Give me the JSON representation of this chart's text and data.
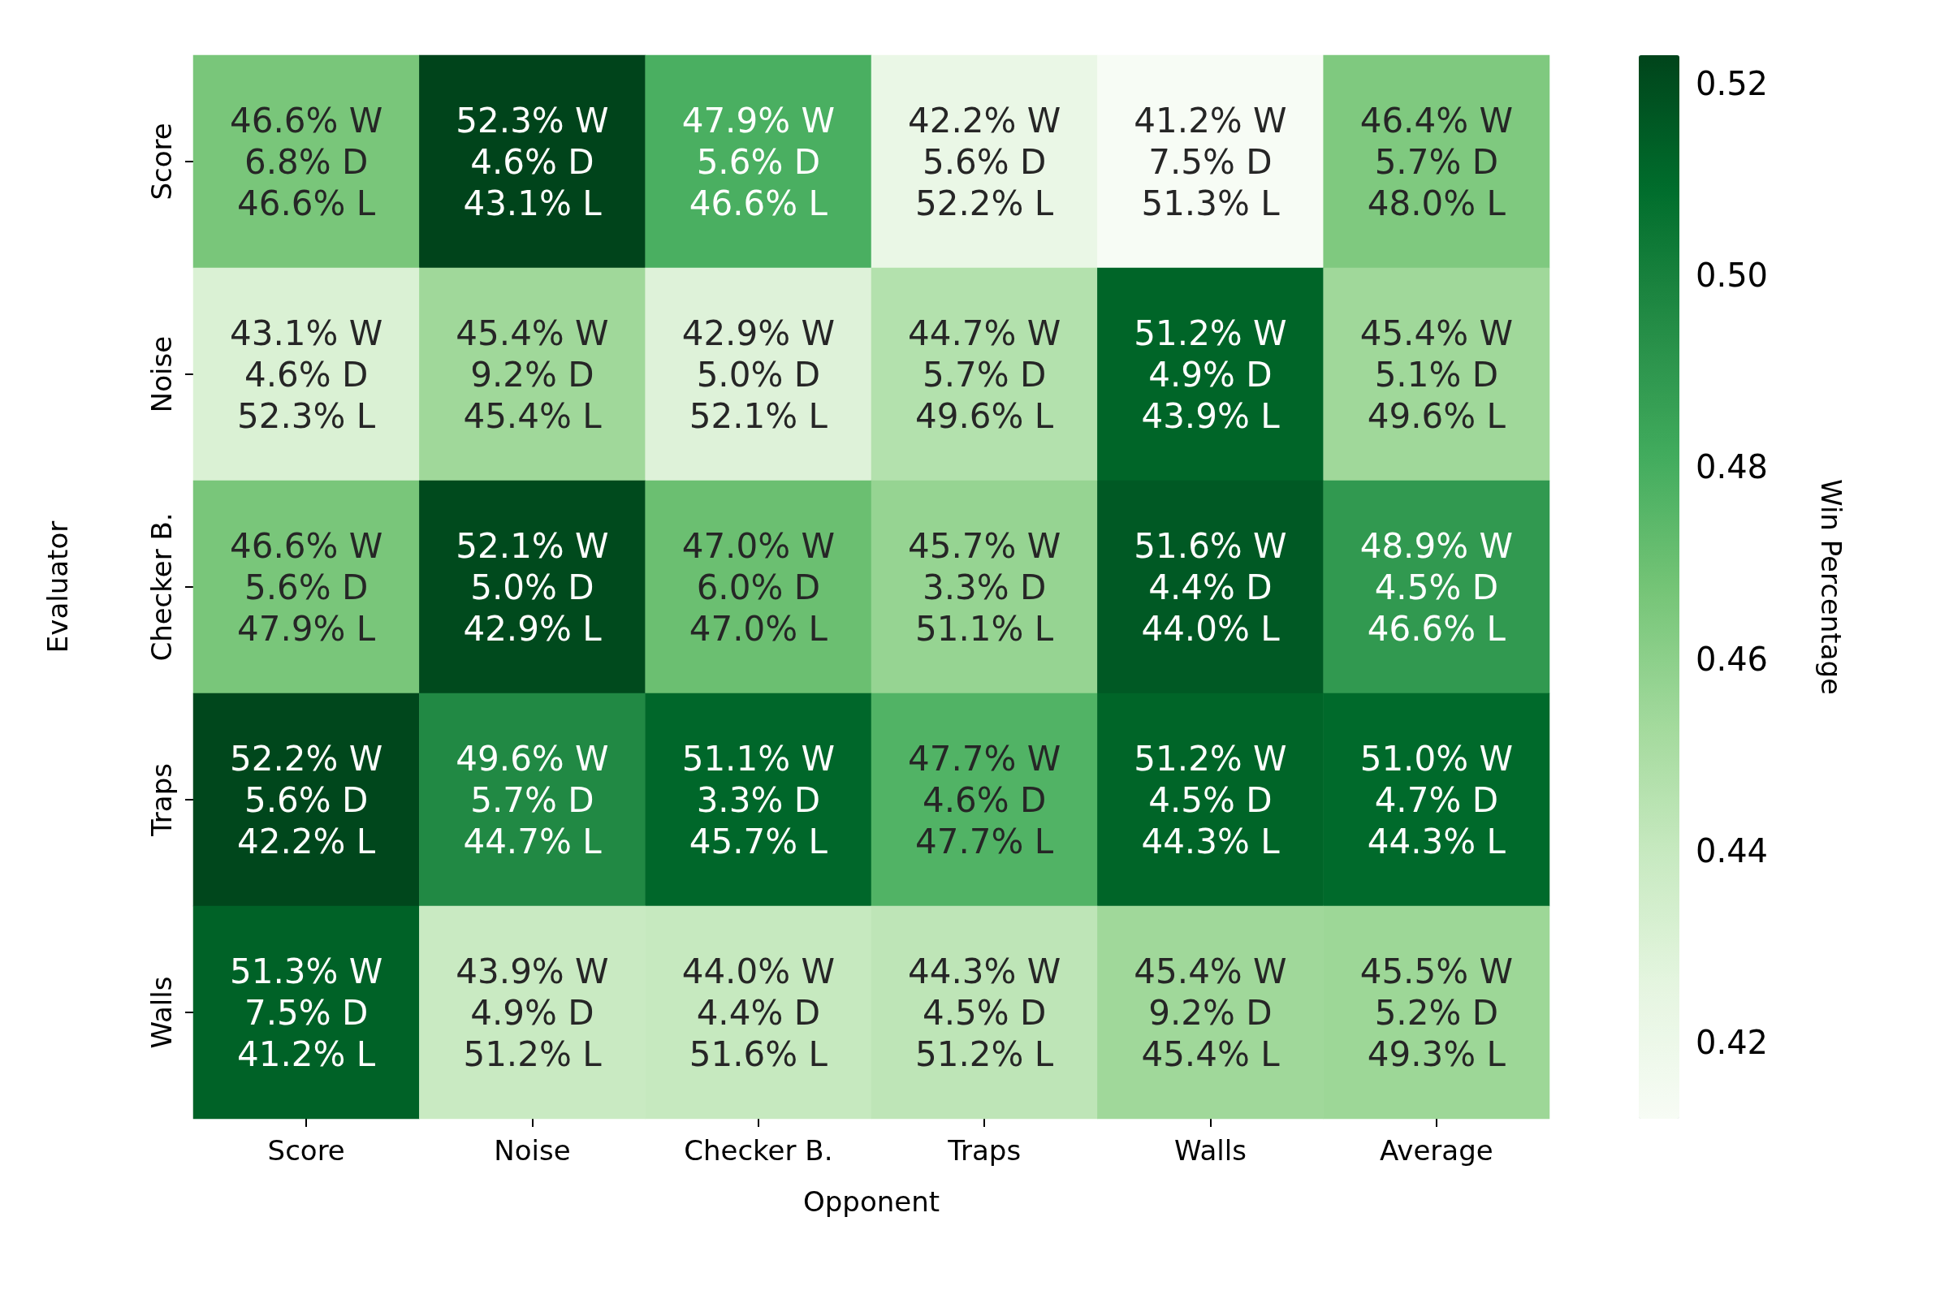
{
  "chart_data": {
    "type": "heatmap",
    "xlabel": "Opponent",
    "ylabel": "Evaluator",
    "clabel": "Win Percentage",
    "categories": [
      "Score",
      "Noise",
      "Checker B.",
      "Traps",
      "Walls",
      "Average"
    ],
    "y_categories": [
      "Score",
      "Noise",
      "Checker B.",
      "Traps",
      "Walls"
    ],
    "cells": [
      [
        0.466,
        0.523,
        0.479,
        0.422,
        0.412,
        0.464
      ],
      [
        0.431,
        0.454,
        0.429,
        0.447,
        0.512,
        0.454
      ],
      [
        0.466,
        0.521,
        0.47,
        0.457,
        0.516,
        0.489
      ],
      [
        0.522,
        0.496,
        0.511,
        0.477,
        0.512,
        0.51
      ],
      [
        0.513,
        0.439,
        0.44,
        0.443,
        0.454,
        0.455
      ]
    ],
    "cell_labels": [
      [
        "46.6% W\n6.8% D\n46.6% L",
        "52.3% W\n4.6% D\n43.1% L",
        "47.9% W\n5.6% D\n46.6% L",
        "42.2% W\n5.6% D\n52.2% L",
        "41.2% W\n7.5% D\n51.3% L",
        "46.4% W\n5.7% D\n48.0% L"
      ],
      [
        "43.1% W\n4.6% D\n52.3% L",
        "45.4% W\n9.2% D\n45.4% L",
        "42.9% W\n5.0% D\n52.1% L",
        "44.7% W\n5.7% D\n49.6% L",
        "51.2% W\n4.9% D\n43.9% L",
        "45.4% W\n5.1% D\n49.6% L"
      ],
      [
        "46.6% W\n5.6% D\n47.9% L",
        "52.1% W\n5.0% D\n42.9% L",
        "47.0% W\n6.0% D\n47.0% L",
        "45.7% W\n3.3% D\n51.1% L",
        "51.6% W\n4.4% D\n44.0% L",
        "48.9% W\n4.5% D\n46.6% L"
      ],
      [
        "52.2% W\n5.6% D\n42.2% L",
        "49.6% W\n5.7% D\n44.7% L",
        "51.1% W\n3.3% D\n45.7% L",
        "47.7% W\n4.6% D\n47.7% L",
        "51.2% W\n4.5% D\n44.3% L",
        "51.0% W\n4.7% D\n44.3% L"
      ],
      [
        "51.3% W\n7.5% D\n41.2% L",
        "43.9% W\n4.9% D\n51.2% L",
        "44.0% W\n4.4% D\n51.6% L",
        "44.3% W\n4.5% D\n51.2% L",
        "45.4% W\n9.2% D\n45.4% L",
        "45.5% W\n5.2% D\n49.3% L"
      ]
    ],
    "clim": [
      0.412,
      0.523
    ],
    "cticks": [
      0.42,
      0.44,
      0.46,
      0.48,
      {
        "value": 0.5,
        "label": "0.50"
      },
      0.52
    ]
  }
}
